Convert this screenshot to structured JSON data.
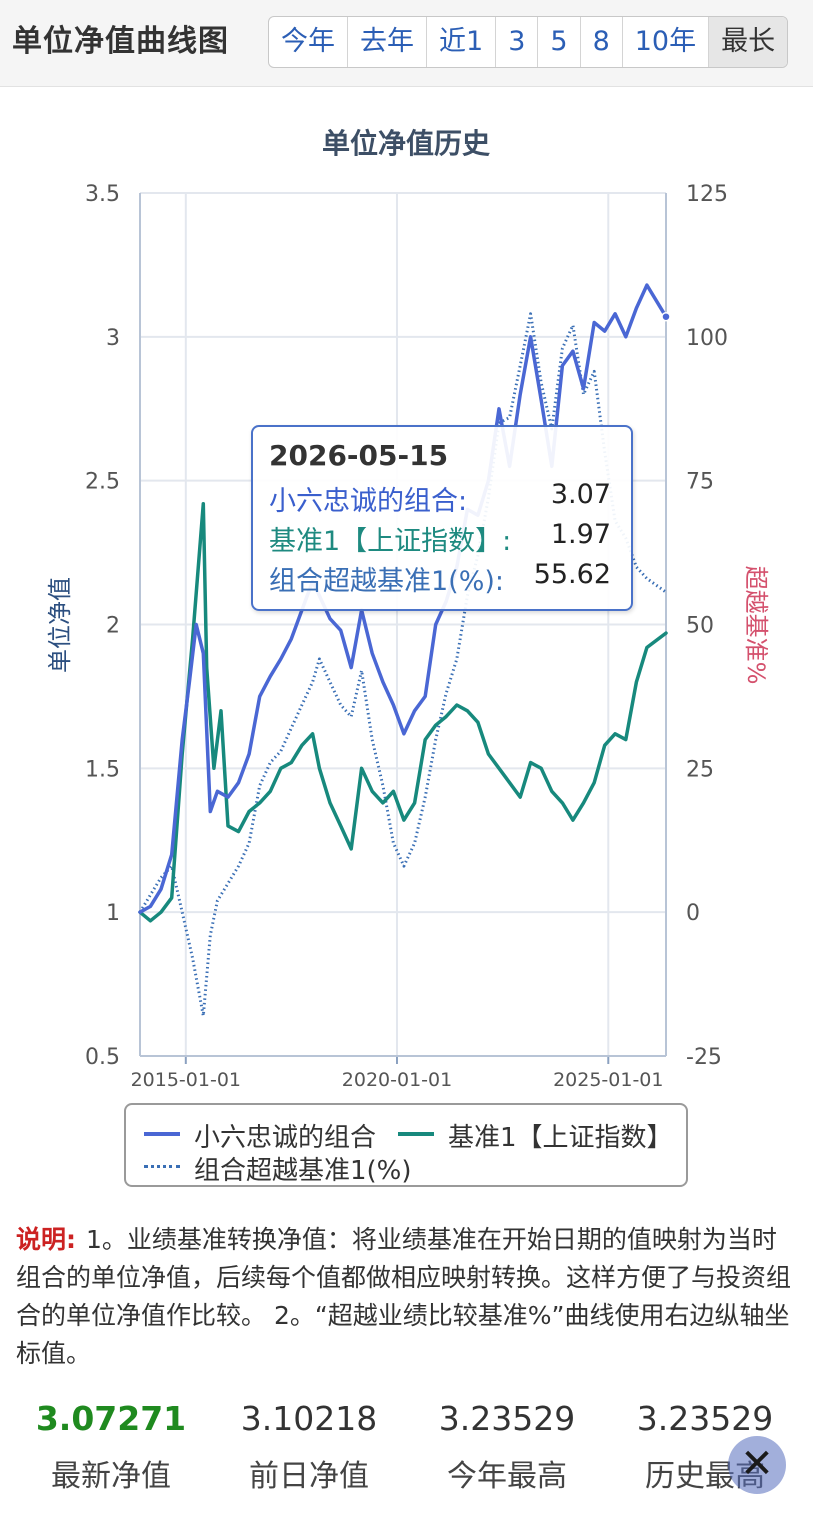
{
  "header": {
    "title": "单位净值曲线图",
    "ranges": [
      "今年",
      "去年",
      "近1",
      "3",
      "5",
      "8",
      "10年",
      "最长"
    ],
    "active_range": "最长"
  },
  "chart_data": {
    "type": "line",
    "title": "单位净值历史",
    "ylabel": "单位净值",
    "y2label": "超越基准%",
    "ylim": [
      0.5,
      3.5
    ],
    "y2lim": [
      -25,
      125
    ],
    "yticks": [
      "3.5",
      "3",
      "2.5",
      "2",
      "1.5",
      "1",
      "0.5"
    ],
    "y2ticks": [
      "125",
      "100",
      "75",
      "50",
      "25",
      "0",
      "-25"
    ],
    "xticks": [
      "2015-01-01",
      "2020-01-01",
      "2025-01-01"
    ],
    "x_range": [
      "2013-12-01",
      "2026-05-15"
    ],
    "grid": true,
    "legend_position": "bottom",
    "series": [
      {
        "name": "小六忠诚的组合",
        "axis": "left",
        "color": "#4a67d4",
        "style": "solid",
        "points": [
          [
            "2013-12-01",
            1.0
          ],
          [
            "2014-03-01",
            1.02
          ],
          [
            "2014-06-01",
            1.08
          ],
          [
            "2014-09-01",
            1.2
          ],
          [
            "2014-12-01",
            1.6
          ],
          [
            "2015-02-01",
            1.8
          ],
          [
            "2015-04-01",
            2.0
          ],
          [
            "2015-06-01",
            1.9
          ],
          [
            "2015-08-01",
            1.35
          ],
          [
            "2015-10-01",
            1.42
          ],
          [
            "2016-01-01",
            1.4
          ],
          [
            "2016-04-01",
            1.45
          ],
          [
            "2016-07-01",
            1.55
          ],
          [
            "2016-10-01",
            1.75
          ],
          [
            "2017-01-01",
            1.82
          ],
          [
            "2017-04-01",
            1.88
          ],
          [
            "2017-07-01",
            1.95
          ],
          [
            "2017-10-01",
            2.05
          ],
          [
            "2018-01-01",
            2.15
          ],
          [
            "2018-03-01",
            2.1
          ],
          [
            "2018-06-01",
            2.02
          ],
          [
            "2018-09-01",
            1.98
          ],
          [
            "2018-12-01",
            1.85
          ],
          [
            "2019-03-01",
            2.05
          ],
          [
            "2019-06-01",
            1.9
          ],
          [
            "2019-09-01",
            1.8
          ],
          [
            "2019-12-01",
            1.72
          ],
          [
            "2020-03-01",
            1.62
          ],
          [
            "2020-06-01",
            1.7
          ],
          [
            "2020-09-01",
            1.75
          ],
          [
            "2020-12-01",
            2.0
          ],
          [
            "2021-03-01",
            2.08
          ],
          [
            "2021-06-01",
            2.2
          ],
          [
            "2021-09-01",
            2.4
          ],
          [
            "2021-12-01",
            2.38
          ],
          [
            "2022-03-01",
            2.5
          ],
          [
            "2022-06-01",
            2.75
          ],
          [
            "2022-09-01",
            2.55
          ],
          [
            "2022-12-01",
            2.8
          ],
          [
            "2023-03-01",
            3.0
          ],
          [
            "2023-06-01",
            2.78
          ],
          [
            "2023-09-01",
            2.55
          ],
          [
            "2023-12-01",
            2.9
          ],
          [
            "2024-03-01",
            2.95
          ],
          [
            "2024-06-01",
            2.82
          ],
          [
            "2024-09-01",
            3.05
          ],
          [
            "2024-12-01",
            3.02
          ],
          [
            "2025-03-01",
            3.08
          ],
          [
            "2025-06-01",
            3.0
          ],
          [
            "2025-09-01",
            3.1
          ],
          [
            "2025-12-01",
            3.18
          ],
          [
            "2026-05-15",
            3.07
          ]
        ]
      },
      {
        "name": "基准1【上证指数】",
        "axis": "left",
        "color": "#17897d",
        "style": "solid",
        "points": [
          [
            "2013-12-01",
            1.0
          ],
          [
            "2014-03-01",
            0.97
          ],
          [
            "2014-06-01",
            1.0
          ],
          [
            "2014-09-01",
            1.05
          ],
          [
            "2014-12-01",
            1.55
          ],
          [
            "2015-03-01",
            1.95
          ],
          [
            "2015-06-01",
            2.42
          ],
          [
            "2015-07-01",
            1.85
          ],
          [
            "2015-09-01",
            1.5
          ],
          [
            "2015-11-01",
            1.7
          ],
          [
            "2016-01-01",
            1.3
          ],
          [
            "2016-04-01",
            1.28
          ],
          [
            "2016-07-01",
            1.35
          ],
          [
            "2016-10-01",
            1.38
          ],
          [
            "2017-01-01",
            1.42
          ],
          [
            "2017-04-01",
            1.5
          ],
          [
            "2017-07-01",
            1.52
          ],
          [
            "2017-10-01",
            1.58
          ],
          [
            "2018-01-01",
            1.62
          ],
          [
            "2018-03-01",
            1.5
          ],
          [
            "2018-06-01",
            1.38
          ],
          [
            "2018-09-01",
            1.3
          ],
          [
            "2018-12-01",
            1.22
          ],
          [
            "2019-03-01",
            1.5
          ],
          [
            "2019-06-01",
            1.42
          ],
          [
            "2019-09-01",
            1.38
          ],
          [
            "2019-12-01",
            1.42
          ],
          [
            "2020-03-01",
            1.32
          ],
          [
            "2020-06-01",
            1.38
          ],
          [
            "2020-09-01",
            1.6
          ],
          [
            "2020-12-01",
            1.65
          ],
          [
            "2021-03-01",
            1.68
          ],
          [
            "2021-06-01",
            1.72
          ],
          [
            "2021-09-01",
            1.7
          ],
          [
            "2021-12-01",
            1.66
          ],
          [
            "2022-03-01",
            1.55
          ],
          [
            "2022-06-01",
            1.5
          ],
          [
            "2022-09-01",
            1.45
          ],
          [
            "2022-12-01",
            1.4
          ],
          [
            "2023-03-01",
            1.52
          ],
          [
            "2023-06-01",
            1.5
          ],
          [
            "2023-09-01",
            1.42
          ],
          [
            "2023-12-01",
            1.38
          ],
          [
            "2024-03-01",
            1.32
          ],
          [
            "2024-06-01",
            1.38
          ],
          [
            "2024-09-01",
            1.45
          ],
          [
            "2024-12-01",
            1.58
          ],
          [
            "2025-03-01",
            1.62
          ],
          [
            "2025-06-01",
            1.6
          ],
          [
            "2025-09-01",
            1.8
          ],
          [
            "2025-12-01",
            1.92
          ],
          [
            "2026-05-15",
            1.97
          ]
        ]
      },
      {
        "name": "组合超越基准1(%)",
        "axis": "right",
        "color": "#3a6fb5",
        "style": "dotted",
        "points": [
          [
            "2013-12-01",
            0
          ],
          [
            "2014-03-01",
            3
          ],
          [
            "2014-06-01",
            6
          ],
          [
            "2014-09-01",
            8
          ],
          [
            "2014-12-01",
            0
          ],
          [
            "2015-03-01",
            -8
          ],
          [
            "2015-06-01",
            -18
          ],
          [
            "2015-08-01",
            -4
          ],
          [
            "2015-10-01",
            2
          ],
          [
            "2016-01-01",
            5
          ],
          [
            "2016-04-01",
            8
          ],
          [
            "2016-07-01",
            12
          ],
          [
            "2016-10-01",
            22
          ],
          [
            "2017-01-01",
            26
          ],
          [
            "2017-04-01",
            28
          ],
          [
            "2017-07-01",
            32
          ],
          [
            "2017-10-01",
            36
          ],
          [
            "2018-01-01",
            40
          ],
          [
            "2018-03-01",
            44
          ],
          [
            "2018-06-01",
            40
          ],
          [
            "2018-09-01",
            36
          ],
          [
            "2018-12-01",
            34
          ],
          [
            "2019-03-01",
            42
          ],
          [
            "2019-06-01",
            30
          ],
          [
            "2019-09-01",
            22
          ],
          [
            "2019-12-01",
            12
          ],
          [
            "2020-03-01",
            8
          ],
          [
            "2020-06-01",
            12
          ],
          [
            "2020-09-01",
            20
          ],
          [
            "2020-12-01",
            30
          ],
          [
            "2021-03-01",
            38
          ],
          [
            "2021-06-01",
            44
          ],
          [
            "2021-09-01",
            55
          ],
          [
            "2021-12-01",
            62
          ],
          [
            "2022-03-01",
            72
          ],
          [
            "2022-06-01",
            85
          ],
          [
            "2022-09-01",
            86
          ],
          [
            "2022-12-01",
            95
          ],
          [
            "2023-03-01",
            104
          ],
          [
            "2023-06-01",
            92
          ],
          [
            "2023-09-01",
            84
          ],
          [
            "2023-12-01",
            98
          ],
          [
            "2024-03-01",
            102
          ],
          [
            "2024-06-01",
            90
          ],
          [
            "2024-09-01",
            94
          ],
          [
            "2024-12-01",
            80
          ],
          [
            "2025-03-01",
            68
          ],
          [
            "2025-06-01",
            65
          ],
          [
            "2025-09-01",
            60
          ],
          [
            "2025-12-01",
            58
          ],
          [
            "2026-05-15",
            55.62
          ]
        ]
      }
    ]
  },
  "tooltip": {
    "date": "2026-05-15",
    "rows": [
      {
        "label": "小六忠诚的组合:",
        "value": "3.07"
      },
      {
        "label": "基准1【上证指数】:",
        "value": "1.97"
      },
      {
        "label": "组合超越基准1(%):",
        "value": "55.62"
      }
    ]
  },
  "note": {
    "label": "说明:",
    "text": "1。业绩基准转换净值：将业绩基准在开始日期的值映射为当时组合的单位净值，后续每个值都做相应映射转换。这样方便了与投资组合的单位净值作比较。 2。“超越业绩比较基准%”曲线使用右边纵轴坐标值。"
  },
  "stats": [
    {
      "value": "3.07271",
      "label": "最新净值"
    },
    {
      "value": "3.10218",
      "label": "前日净值"
    },
    {
      "value": "3.23529",
      "label": "今年最高"
    },
    {
      "value": "3.23529",
      "label": "历史最高"
    }
  ],
  "close_button": {
    "glyph": "✕",
    "icon": "close-icon"
  },
  "colors": {
    "portfolio": "#4a67d4",
    "benchmark": "#17897d",
    "excess": "#3a6fb5",
    "right_axis_label": "#d4516d",
    "latest_value": "#1f8a1f"
  }
}
